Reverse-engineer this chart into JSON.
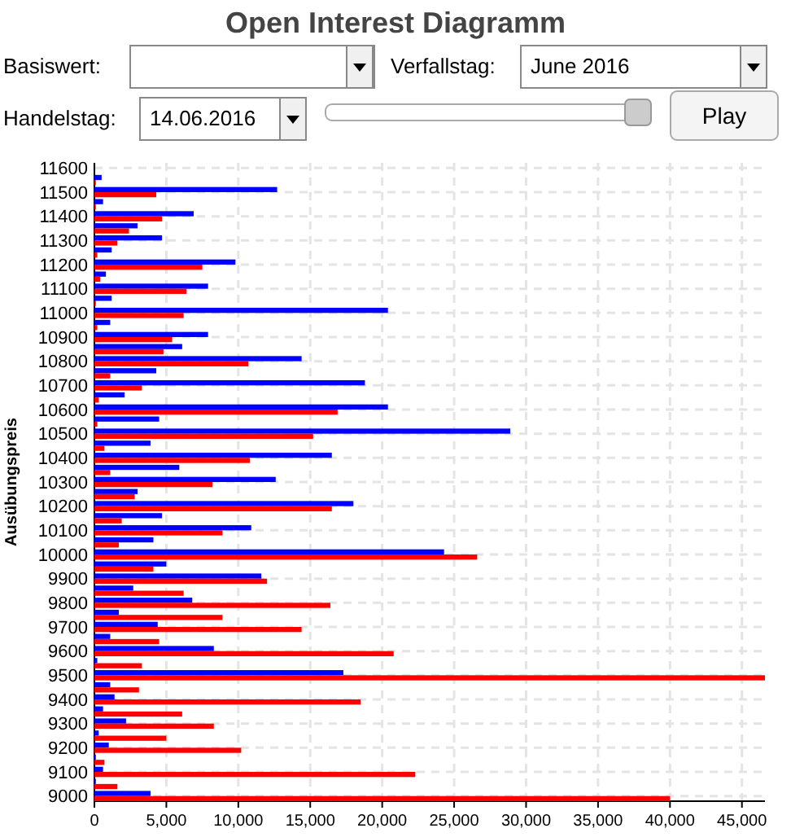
{
  "chart_data": {
    "type": "bar",
    "orientation": "horizontal",
    "title": "Open Interest Diagramm",
    "ylabel": "Ausübungspreis",
    "annotations": [
      "Basiswert:",
      "Verfallstag:",
      "June 2016",
      "Handelstag:",
      "14.06.2016",
      "Play"
    ],
    "categories": [
      "11600",
      null,
      "11500",
      null,
      "11400",
      null,
      "11300",
      null,
      "11200",
      null,
      "11100",
      null,
      "11000",
      null,
      "10900",
      null,
      "10800",
      null,
      "10700",
      null,
      "10600",
      null,
      "10500",
      null,
      "10400",
      null,
      "10300",
      null,
      "10200",
      null,
      "10100",
      null,
      "10000",
      null,
      "9900",
      null,
      "9800",
      null,
      "9700",
      null,
      "9600",
      null,
      "9500",
      null,
      "9400",
      null,
      "9300",
      null,
      "9200",
      null,
      "9100",
      null,
      "9000"
    ],
    "series": [
      {
        "color": "#0000ff",
        "values": [
          null,
          500,
          12700,
          600,
          6900,
          3000,
          4700,
          1200,
          9800,
          800,
          7900,
          1200,
          20400,
          1100,
          7900,
          6100,
          14400,
          4300,
          18800,
          2100,
          20400,
          4500,
          28900,
          3900,
          16500,
          5900,
          12600,
          3000,
          18000,
          4700,
          10900,
          4100,
          24300,
          5000,
          11600,
          2700,
          6800,
          1700,
          4400,
          1100,
          8300,
          200,
          17300,
          1100,
          1400,
          600,
          2200,
          300,
          1000,
          100,
          600,
          100,
          3900
        ]
      },
      {
        "color": "#ff0000",
        "values": [
          null,
          100,
          4300,
          100,
          4700,
          2400,
          1600,
          200,
          7500,
          400,
          6400,
          100,
          6200,
          200,
          5400,
          4800,
          10700,
          1100,
          3300,
          300,
          16900,
          200,
          15200,
          700,
          10800,
          1100,
          8200,
          2800,
          16500,
          1900,
          8900,
          1700,
          26600,
          4100,
          12000,
          6200,
          16400,
          8900,
          14400,
          4500,
          20800,
          3300,
          46600,
          3100,
          18500,
          6100,
          8300,
          5000,
          10200,
          700,
          22300,
          1600,
          40000
        ]
      }
    ],
    "xlim": [
      0,
      46600
    ],
    "xticks": [
      0,
      {
        "value": 5000,
        "label": "5,000"
      },
      {
        "value": 10000,
        "label": "10,000"
      },
      {
        "value": 15000,
        "label": "15,000"
      },
      {
        "value": 20000,
        "label": "20,000"
      },
      {
        "value": 25000,
        "label": "25,000"
      },
      {
        "value": 30000,
        "label": "30,000"
      },
      {
        "value": 35000,
        "label": "35,000"
      },
      {
        "value": 40000,
        "label": "40,000"
      },
      {
        "value": 45000,
        "label": "45,000"
      }
    ],
    "grid": true
  }
}
